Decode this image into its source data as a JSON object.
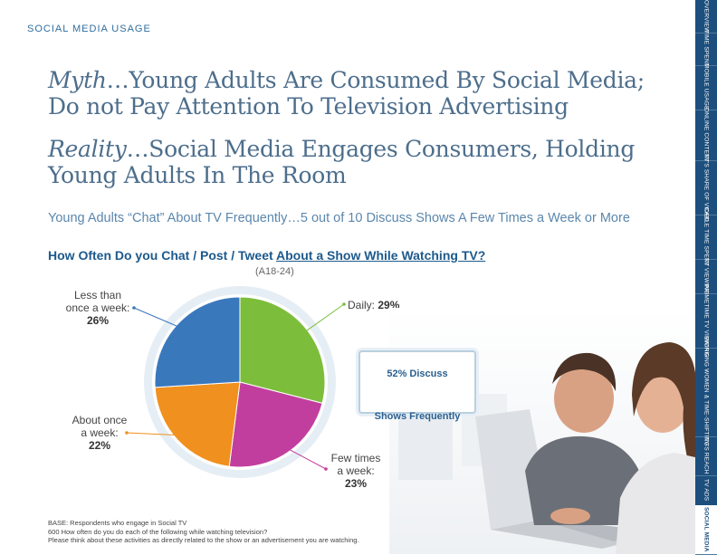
{
  "section_label": "SOCIAL MEDIA USAGE",
  "headline1": {
    "italic": "Myth",
    "rest": "…Young Adults Are Consumed By Social Media; Do not Pay Attention To Television Advertising"
  },
  "headline2": {
    "italic": "Reality",
    "rest": "…Social Media Engages Consumers, Holding Young Adults In The Room"
  },
  "subhead": "Young Adults “Chat” About TV Frequently…5 out of 10 Discuss Shows A Few Times a Week or More",
  "chart_data": {
    "type": "pie",
    "title_part1": "How Often Do you Chat / Post / Tweet ",
    "title_part2": "About a Show While Watching TV?",
    "subtitle": "(A18-24)",
    "slices": [
      {
        "label_line1": "Daily:",
        "label_line2": "",
        "value_text": "29%",
        "value": 29,
        "color": "#7dbd3c"
      },
      {
        "label_line1": "Few times",
        "label_line2": "a week:",
        "value_text": "23%",
        "value": 23,
        "color": "#c23e9e"
      },
      {
        "label_line1": "About once",
        "label_line2": "a week:",
        "value_text": "22%",
        "value": 22,
        "color": "#f0901e"
      },
      {
        "label_line1": "Less than",
        "label_line2": "once a week:",
        "value_text": "26%",
        "value": 26,
        "color": "#3a78bc"
      }
    ]
  },
  "callout": {
    "line1": "52% Discuss",
    "line2": "Shows Frequently"
  },
  "footnotes": [
    "BASE: Respondents who engage in Social TV",
    "600 How often do you do each of the following while watching television?",
    "Please think about these activities as directly related to the show or an advertisement you are watching."
  ],
  "sidebar": [
    {
      "label": "OVERVIEW",
      "active": false
    },
    {
      "label": "TIME SPENT",
      "active": false
    },
    {
      "label": "MOBILE USAGE",
      "active": false
    },
    {
      "label": "ONLINE CONTENT",
      "active": false
    },
    {
      "label": "TV’S SHARE OF VIDEO",
      "active": false
    },
    {
      "label": "CABLE TIME SPENT",
      "active": false
    },
    {
      "label": "TV VIEWING",
      "active": false
    },
    {
      "label": "PRIMETIME TV VIEWING",
      "active": false
    },
    {
      "label": "WORKING WOMEN & TIME-SHIFTING",
      "active": false
    },
    {
      "label": "TV’S REACH",
      "active": false
    },
    {
      "label": "TV ADS",
      "active": false
    },
    {
      "label": "SOCIAL MEDIA",
      "active": true
    }
  ]
}
